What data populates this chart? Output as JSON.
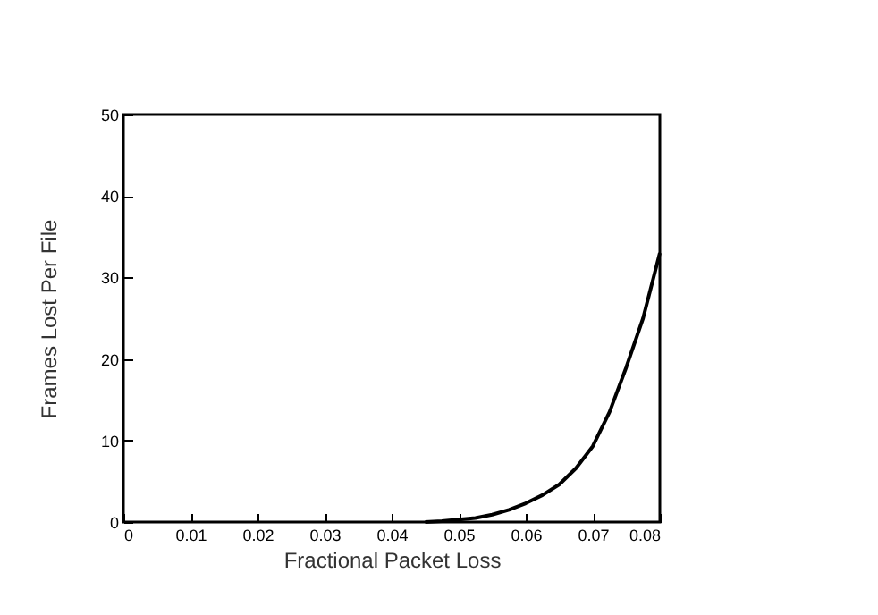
{
  "chart_data": {
    "type": "line",
    "xlabel": "Fractional Packet Loss",
    "ylabel": "Frames Lost Per File",
    "x": [
      0.045,
      0.0475,
      0.05,
      0.0525,
      0.055,
      0.0575,
      0.06,
      0.0625,
      0.065,
      0.0675,
      0.07,
      0.0725,
      0.075,
      0.0775,
      0.08
    ],
    "series": [
      {
        "color": "#000000",
        "values": [
          0,
          0.1,
          0.3,
          0.5,
          0.9,
          1.5,
          2.3,
          3.3,
          4.6,
          6.6,
          9.3,
          13.5,
          19,
          25,
          33
        ]
      }
    ],
    "xlim": [
      0,
      0.08
    ],
    "xticks": [
      {
        "value": 0,
        "label": "0"
      },
      0.01,
      0.02,
      0.03,
      0.04,
      0.05,
      0.06,
      0.07,
      0.08
    ],
    "ylim": [
      0,
      50
    ],
    "yticks": [
      0,
      10,
      20,
      30,
      40,
      50
    ],
    "grid": false,
    "legend": false,
    "marker": "none",
    "line_style": "solid"
  }
}
